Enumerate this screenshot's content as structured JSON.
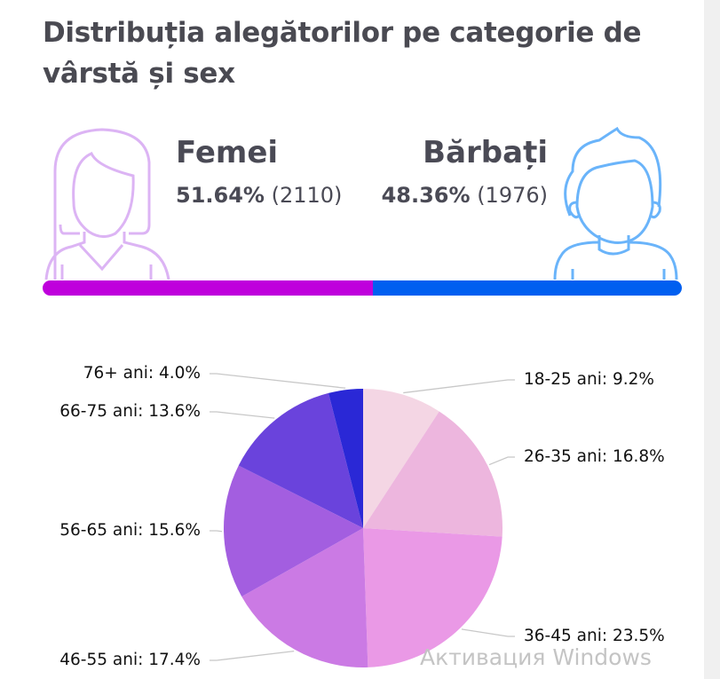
{
  "title": "Distribuția alegătorilor pe categorie de vârstă și sex",
  "female": {
    "label": "Femei",
    "percent": "51.64%",
    "count": "(2110)",
    "share": 51.64,
    "color": "#bf00dc",
    "icon_color": "#dcb4f4"
  },
  "male": {
    "label": "Bărbați",
    "percent": "48.36%",
    "count": "(1976)",
    "share": 48.36,
    "color": "#005ff0",
    "icon_color": "#6ab4fa"
  },
  "watermark": "Активация Windows",
  "chart_data": {
    "type": "pie",
    "title": "",
    "categories": [
      "18-25 ani",
      "26-35 ani",
      "36-45 ani",
      "46-55 ani",
      "56-65 ani",
      "66-75 ani",
      "76+ ani"
    ],
    "values": [
      9.2,
      16.8,
      23.5,
      17.4,
      15.6,
      13.6,
      4.0
    ],
    "labels": [
      "18-25 ani: 9.2%",
      "26-35 ani: 16.8%",
      "36-45 ani: 23.5%",
      "46-55 ani: 17.4%",
      "56-65 ani: 15.6%",
      "66-75 ani: 13.6%",
      "76+ ani: 4.0%"
    ],
    "colors": [
      "#f4d6e4",
      "#edb6de",
      "#ea99e6",
      "#cb7ae4",
      "#a35ee0",
      "#6a43dc",
      "#2a28d6"
    ],
    "start": "top",
    "direction": "clockwise"
  }
}
